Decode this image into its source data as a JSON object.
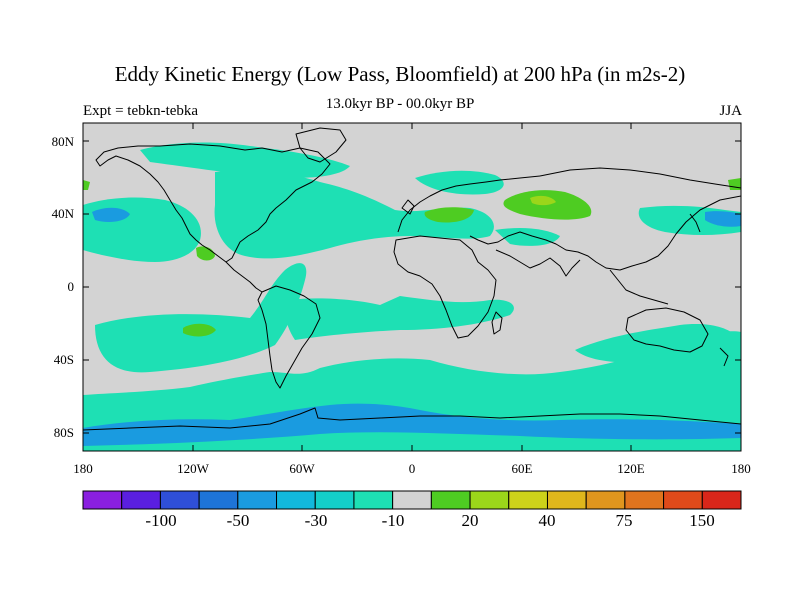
{
  "title": "Eddy Kinetic Energy (Low Pass, Bloomfield) at 200 hPa (in m2s-2)",
  "subtitle": "13.0kyr BP - 00.0kyr BP",
  "left_label": "Expt = tebkn-tebka",
  "right_label": "JJA",
  "lat_ticks": [
    "80N",
    "40N",
    "0",
    "40S",
    "80S"
  ],
  "lon_ticks": [
    "180",
    "120W",
    "60W",
    "0",
    "60E",
    "120E",
    "180"
  ],
  "colorbar": {
    "colors": [
      "#8a1fe0",
      "#5a1fe0",
      "#2f4fd8",
      "#1e74d8",
      "#1a9be0",
      "#12b8dc",
      "#14cfc9",
      "#1ee0b4",
      "#d3d3d3",
      "#4ecc22",
      "#9bd61a",
      "#cdd21a",
      "#e0b71c",
      "#e0961e",
      "#e0741e",
      "#e04a1a",
      "#d9261a"
    ],
    "labels": [
      "-100",
      "-50",
      "-30",
      "-10",
      "20",
      "40",
      "75",
      "150"
    ]
  },
  "map_colors": {
    "background": "#d3d3d3",
    "light_negative": "#1ee0b4",
    "mid_negative": "#14cfc9",
    "strong_negative": "#1a9be0",
    "positive": "#4ecc22",
    "strong_positive": "#9bd61a",
    "coast": "#000000"
  }
}
